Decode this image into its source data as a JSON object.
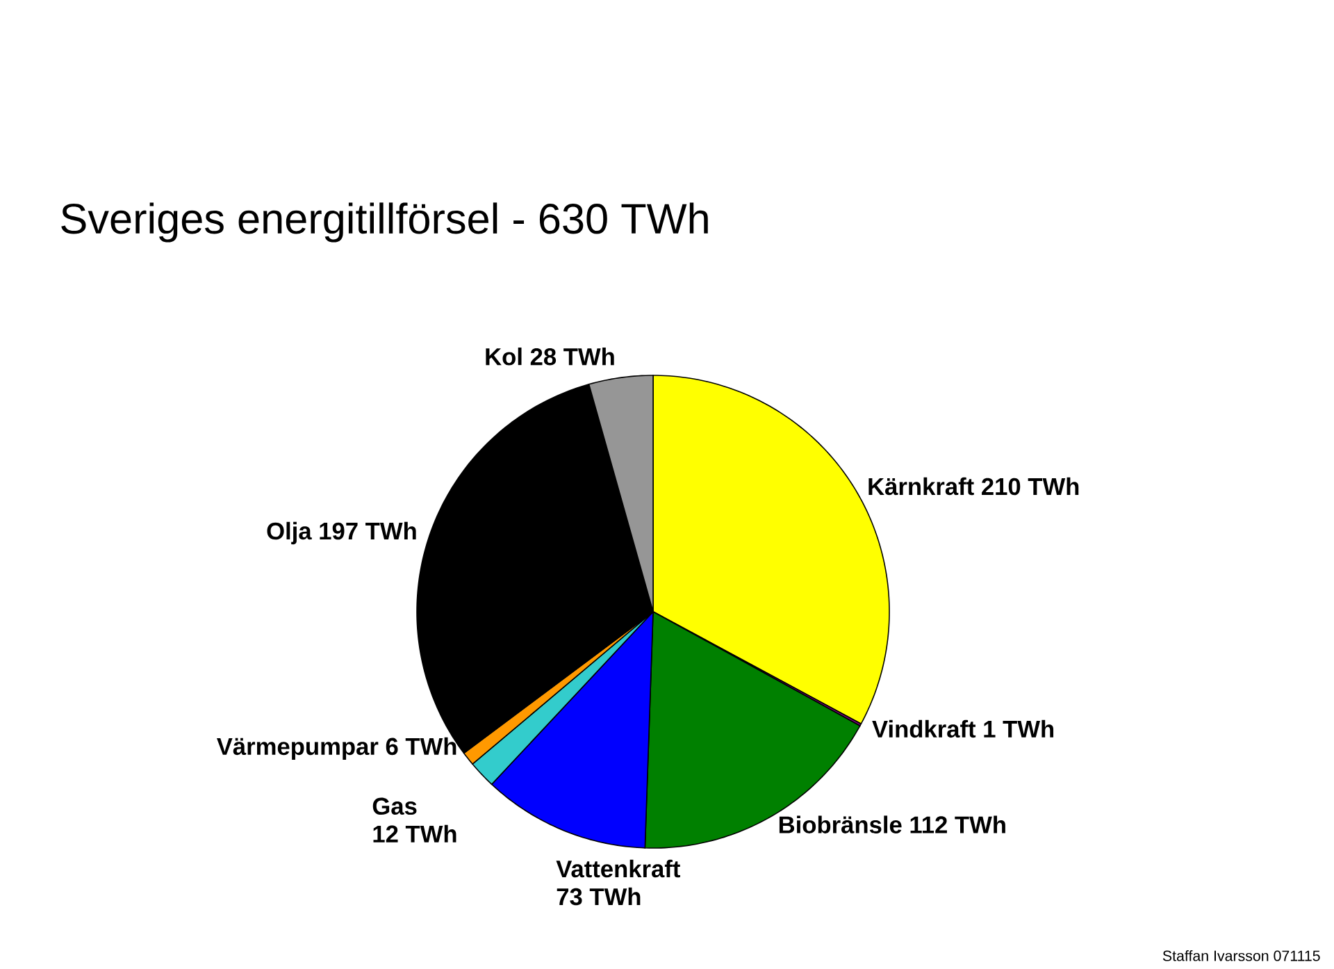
{
  "chart_data": {
    "type": "pie",
    "title": "Sveriges energitillförsel - 630 TWh",
    "categories": [
      "Kärnkraft",
      "Vindkraft",
      "Biobränsle",
      "Vattenkraft",
      "Gas",
      "Värmepumpar",
      "Olja",
      "Kol"
    ],
    "values": [
      210,
      1,
      112,
      73,
      12,
      6,
      197,
      28
    ],
    "value_labels": [
      "210 TWh",
      "1 TWh",
      "112 TWh",
      "73 TWh",
      "12 TWh",
      "6 TWh",
      "197 TWh",
      "28 TWh"
    ],
    "colors": [
      "#ffff00",
      "#800080",
      "#008000",
      "#0000ff",
      "#33cccc",
      "#ff9900",
      "#000000",
      "#969696"
    ],
    "legend": false,
    "annotations": [
      "Staffan Ivarsson 071115"
    ]
  }
}
